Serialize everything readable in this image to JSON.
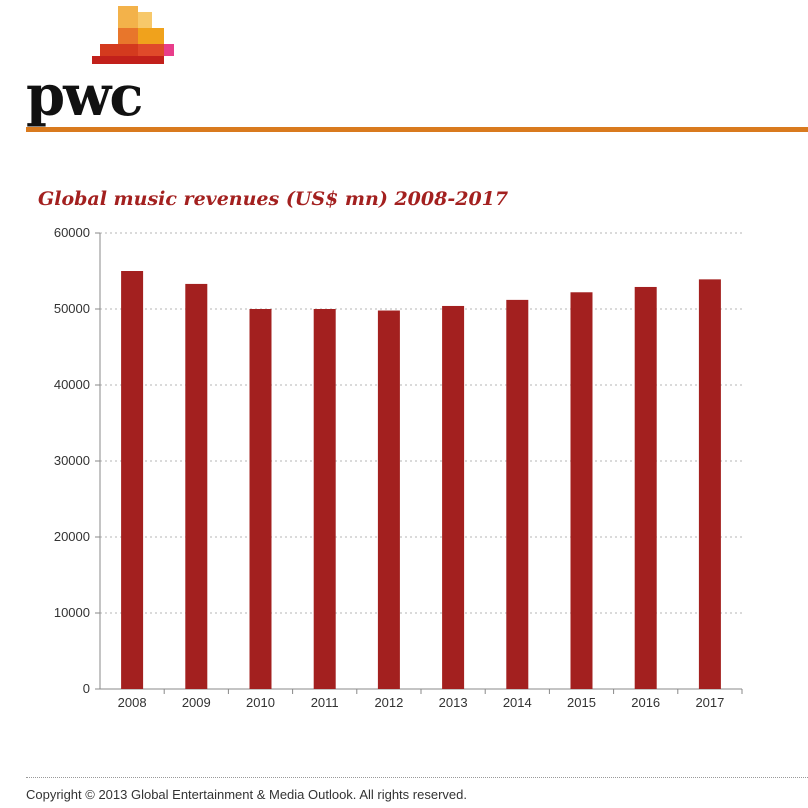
{
  "brand": {
    "name": "pwc"
  },
  "chart_data": {
    "type": "bar",
    "title": "Global music revenues (US$ mn) 2008-2017",
    "categories": [
      "2008",
      "2009",
      "2010",
      "2011",
      "2012",
      "2013",
      "2014",
      "2015",
      "2016",
      "2017"
    ],
    "values": [
      55000,
      53300,
      50000,
      50000,
      49800,
      50400,
      51200,
      52200,
      52900,
      53900
    ],
    "ylim": [
      0,
      60000
    ],
    "yticks": [
      0,
      10000,
      20000,
      30000,
      40000,
      50000,
      60000
    ],
    "grid": true,
    "bar_color": "#a3201f",
    "xlabel": "",
    "ylabel": ""
  },
  "footer": {
    "text": "Copyright © 2013 Global Entertainment & Media Outlook. All rights reserved."
  }
}
